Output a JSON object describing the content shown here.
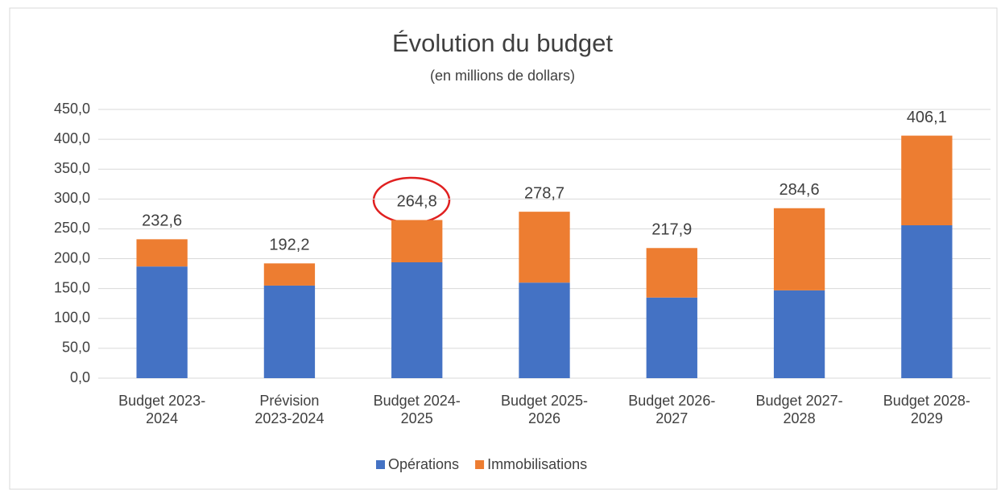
{
  "chart_data": {
    "type": "stacked_bar",
    "title": "Évolution du budget",
    "subtitle": "(en millions de dollars)",
    "categories": [
      "Budget 2023-2024",
      "Prévision 2023-2024",
      "Budget 2024-2025",
      "Budget 2025-2026",
      "Budget 2026-2027",
      "Budget 2027-2028",
      "Budget 2028-2029"
    ],
    "series": [
      {
        "name": "Opérations",
        "color": "#4472c4",
        "values": [
          187,
          155,
          194,
          160,
          135,
          147,
          256
        ]
      },
      {
        "name": "Immobilisations",
        "color": "#ed7d31",
        "values": [
          45.6,
          37.2,
          70.8,
          118.7,
          82.9,
          137.6,
          150.1
        ]
      }
    ],
    "totals": [
      232.6,
      192.2,
      264.8,
      278.7,
      217.9,
      284.6,
      406.1
    ],
    "total_labels": [
      "232,6",
      "192,2",
      "264,8",
      "278,7",
      "217,9",
      "284,6",
      "406,1"
    ],
    "ylim": [
      0,
      450
    ],
    "yticks": [
      {
        "value": 0,
        "label": "0,0"
      },
      {
        "value": 50,
        "label": "50,0"
      },
      {
        "value": 100,
        "label": "100,0"
      },
      {
        "value": 150,
        "label": "150,0"
      },
      {
        "value": 200,
        "label": "200,0"
      },
      {
        "value": 250,
        "label": "250,0"
      },
      {
        "value": 300,
        "label": "300,0"
      },
      {
        "value": 350,
        "label": "350,0"
      },
      {
        "value": 400,
        "label": "400,0"
      },
      {
        "value": 450,
        "label": "450,0"
      }
    ],
    "grid": true,
    "legend": "bottom"
  }
}
